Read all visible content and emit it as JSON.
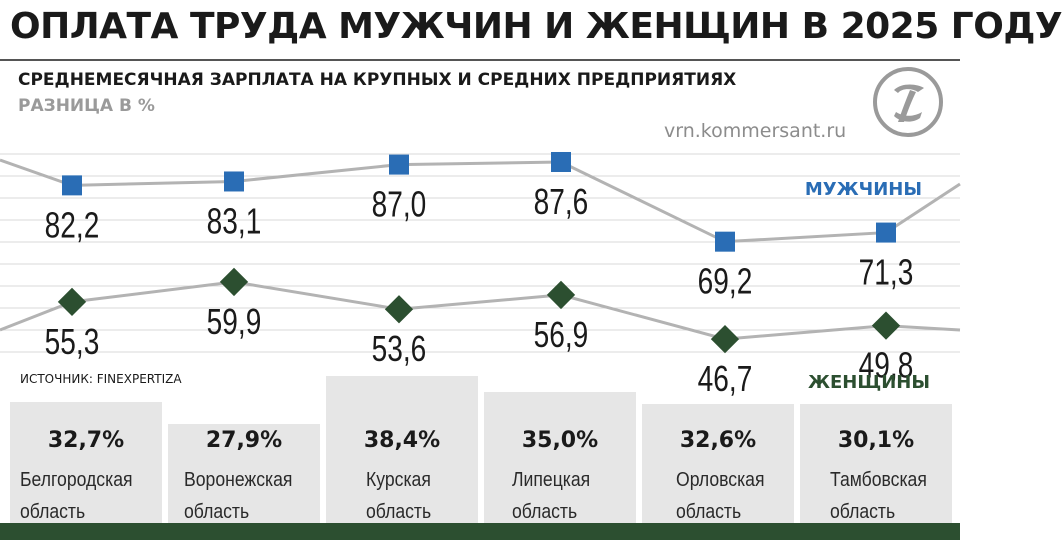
{
  "header": {
    "title": "ОПЛАТА ТРУДА МУЖЧИН И ЖЕНЩИН В 2025 ГОДУ",
    "subtitle": "СРЕДНЕМЕСЯЧНАЯ ЗАРПЛАТА НА КРУПНЫХ И СРЕДНИХ ПРЕДПРИЯТИЯХ",
    "subtitle2": "РАЗНИЦА В %",
    "site": "vrn.kommersant.ru",
    "logo_icon": "kommersant-logo-icon"
  },
  "source": "ИСТОЧНИК: FINEXPERTIZA",
  "colors": {
    "men": "#2a6db5",
    "women": "#2c4f30",
    "line": "#b3b3b3",
    "grid": "#d9d9d9",
    "panel": "#e6e6e6",
    "footer": "#2c4f30"
  },
  "chart_data": {
    "type": "line",
    "categories": [
      "Белгородская область",
      "Воронежская область",
      "Курская область",
      "Липецкая область",
      "Орловская область",
      "Тамбовская область"
    ],
    "series": [
      {
        "name": "МУЖЧИНЫ",
        "values": [
          82.2,
          83.1,
          87.0,
          87.6,
          69.2,
          71.3
        ],
        "labels": [
          "82,2",
          "83,1",
          "87,0",
          "87,6",
          "69,2",
          "71,3"
        ],
        "marker": "square"
      },
      {
        "name": "ЖЕНЩИНЫ",
        "values": [
          55.3,
          59.9,
          53.6,
          56.9,
          46.7,
          49.8
        ],
        "labels": [
          "55,3",
          "59,9",
          "53,6",
          "56,9",
          "46,7",
          "49,8"
        ],
        "marker": "diamond"
      }
    ],
    "grid": true
  },
  "regions": [
    {
      "diff": "32,7%",
      "line1": "Белгородская",
      "line2": "область"
    },
    {
      "diff": "27,9%",
      "line1": "Воронежская",
      "line2": "область"
    },
    {
      "diff": "38,4%",
      "line1": "Курская",
      "line2": "область"
    },
    {
      "diff": "35,0%",
      "line1": "Липецкая",
      "line2": "область"
    },
    {
      "diff": "32,6%",
      "line1": "Орловская",
      "line2": "область"
    },
    {
      "diff": "30,1%",
      "line1": "Тамбовская",
      "line2": "область"
    }
  ]
}
